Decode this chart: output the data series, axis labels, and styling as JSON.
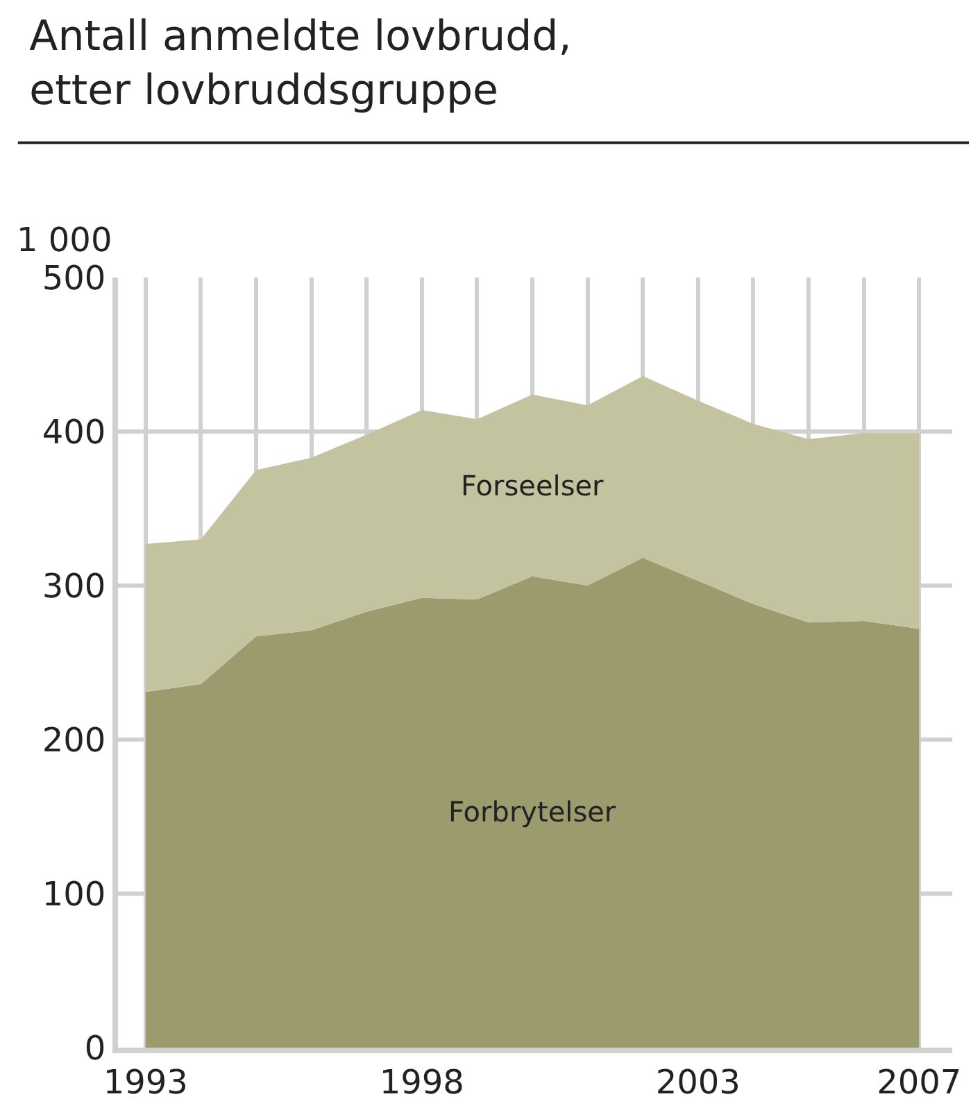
{
  "chart_data": {
    "type": "area",
    "title": "Antall anmeldte lovbrudd, etter lovbruddsgruppe",
    "ylabel": "1 000",
    "stacked": true,
    "legend": false,
    "grid": true,
    "x": [
      1993,
      1994,
      1995,
      1996,
      1997,
      1998,
      1999,
      2000,
      2001,
      2002,
      2003,
      2004,
      2005,
      2006,
      2007
    ],
    "series": [
      {
        "name": "Forbrytelser",
        "color": "#9c9b6e",
        "values": [
          231,
          236,
          267,
          271,
          283,
          292,
          291,
          306,
          300,
          318,
          303,
          288,
          276,
          277,
          272
        ]
      },
      {
        "name": "Forseelser",
        "color": "#c4c3a0",
        "values": [
          96,
          94,
          108,
          112,
          115,
          122,
          117,
          118,
          117,
          118,
          117,
          117,
          119,
          122,
          127
        ]
      }
    ],
    "xlim": [
      1992.5,
      2007.6
    ],
    "xticks": [
      1993,
      {
        "value": 1994,
        "label": null
      },
      {
        "value": 1995,
        "label": null
      },
      {
        "value": 1996,
        "label": null
      },
      {
        "value": 1997,
        "label": null
      },
      1998,
      {
        "value": 1999,
        "label": null
      },
      {
        "value": 2000,
        "label": null
      },
      {
        "value": 2001,
        "label": null
      },
      {
        "value": 2002,
        "label": null
      },
      2003,
      {
        "value": 2004,
        "label": null
      },
      {
        "value": 2005,
        "label": null
      },
      {
        "value": 2006,
        "label": null
      },
      2007
    ],
    "ylim": [
      0,
      500
    ],
    "yticks": [
      0,
      100,
      200,
      300,
      400,
      500
    ]
  }
}
